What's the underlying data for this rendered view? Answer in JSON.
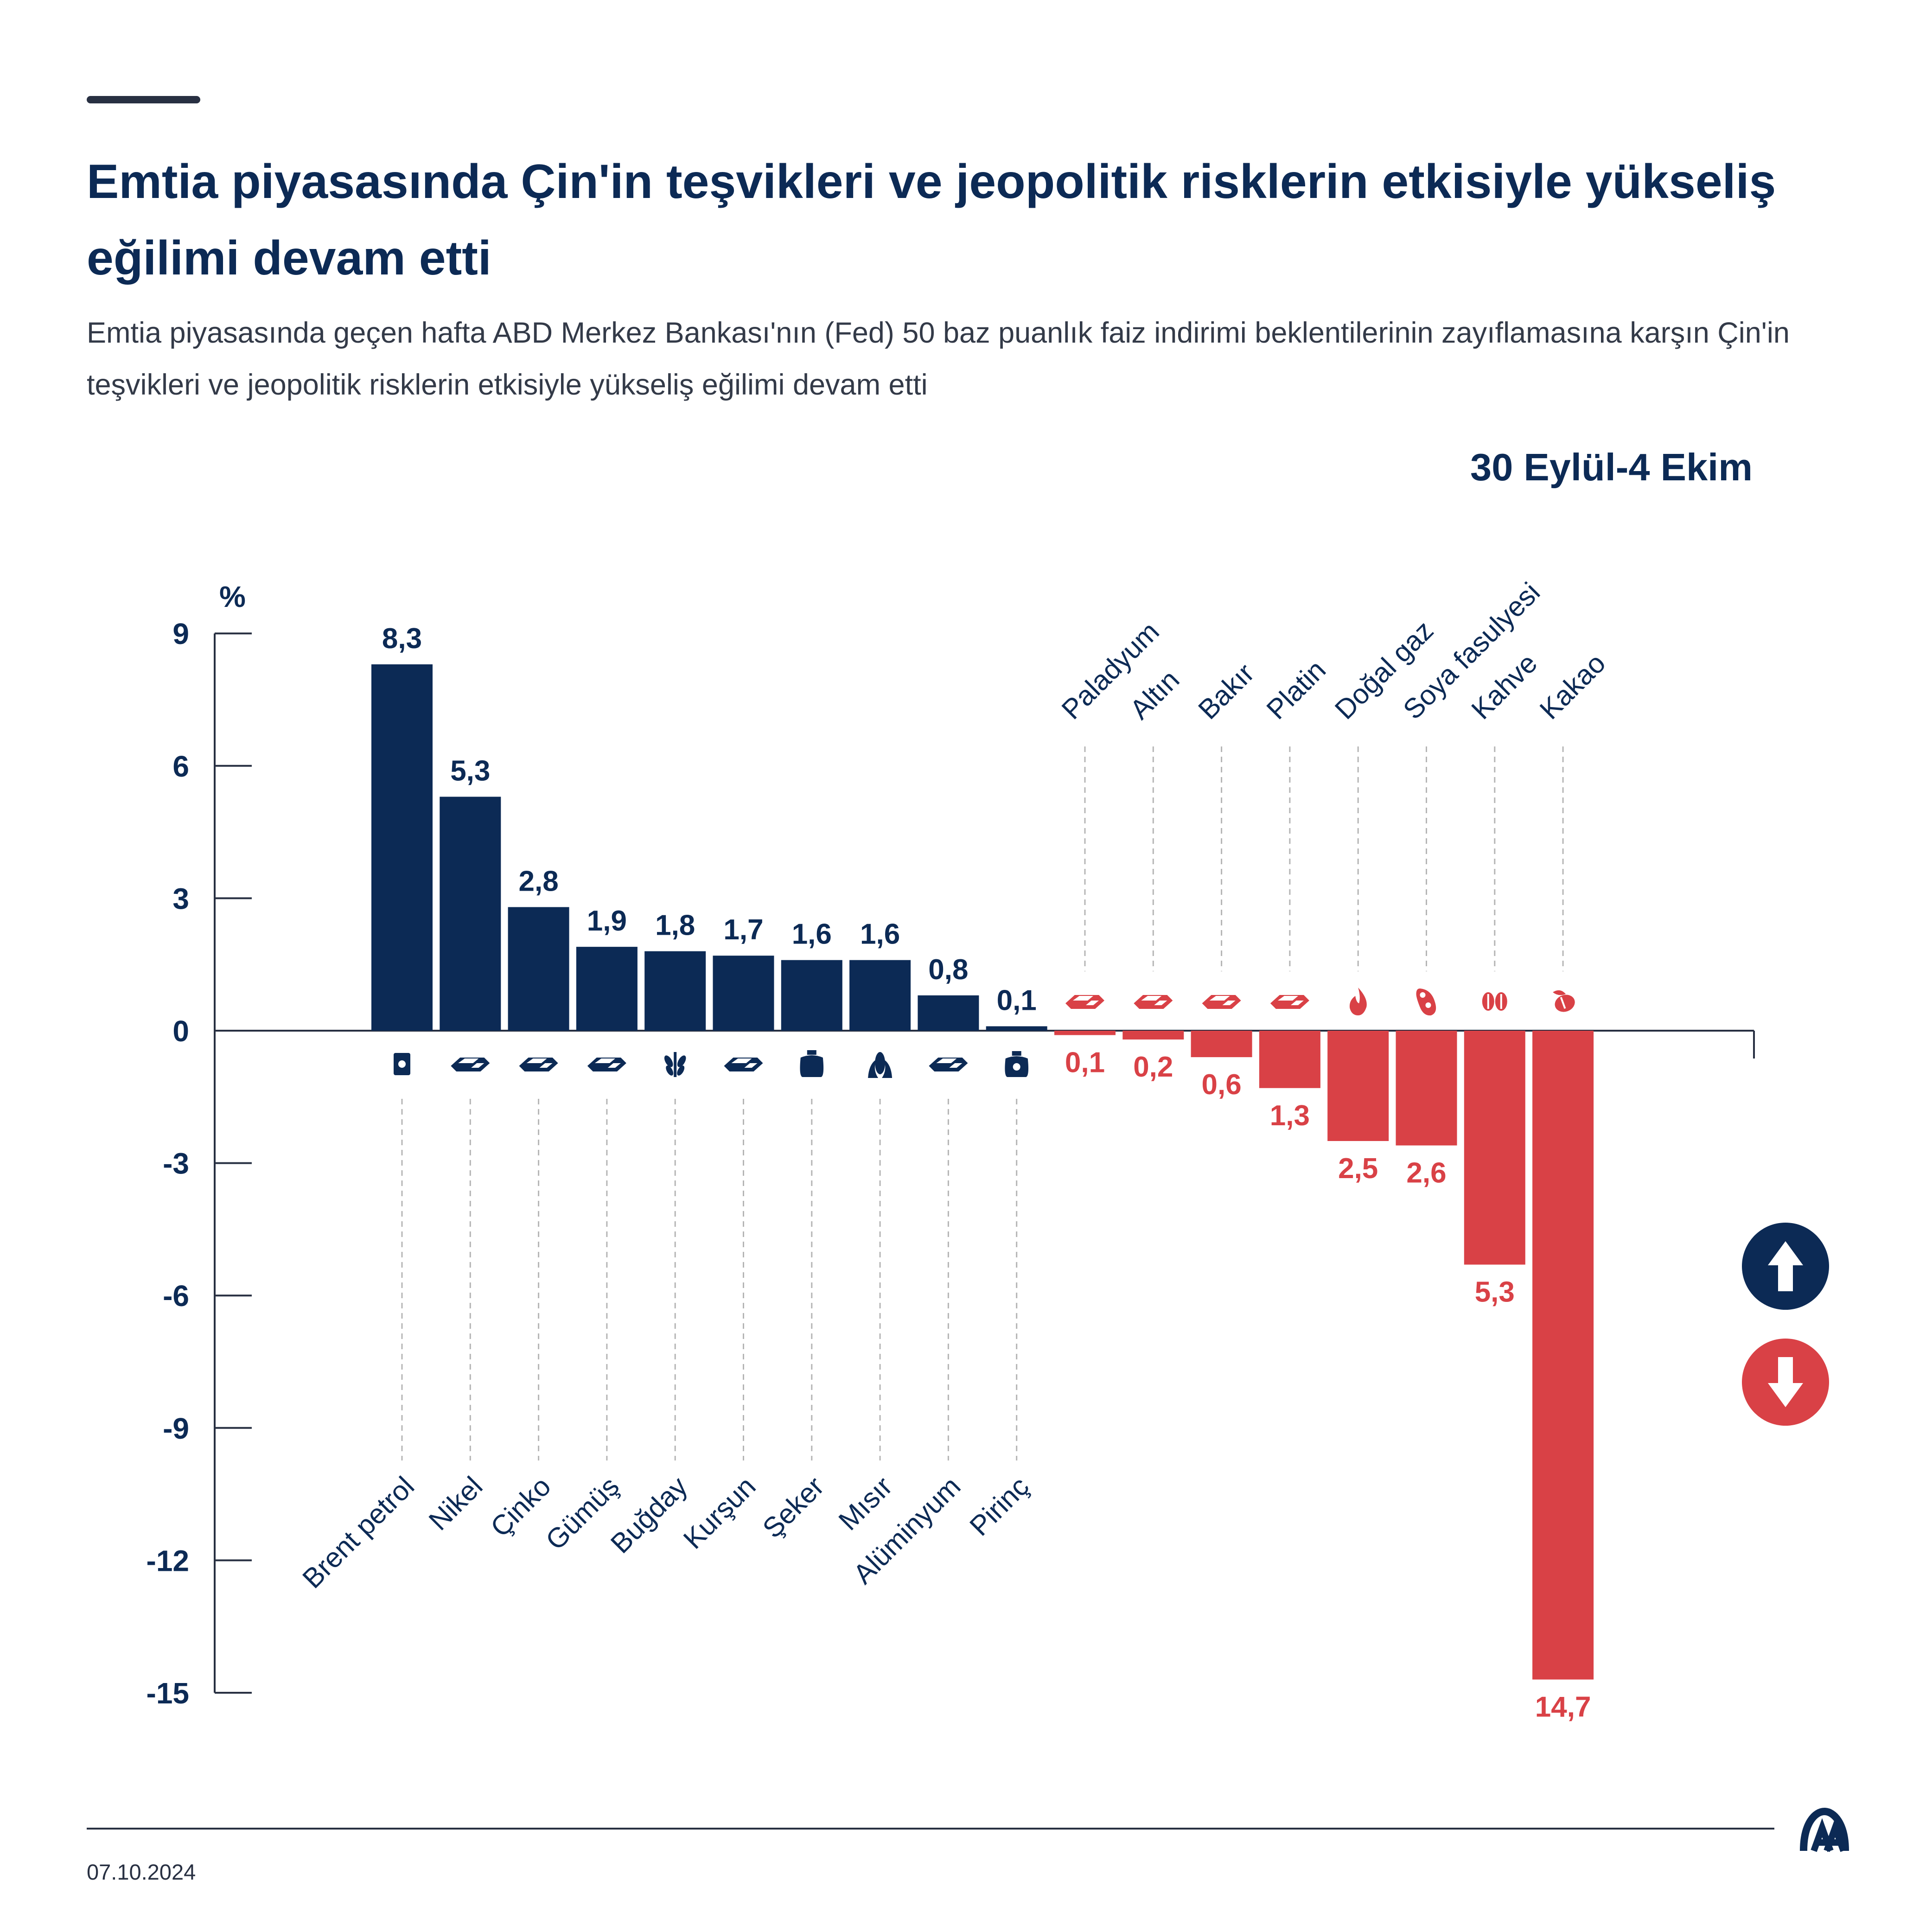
{
  "header": {
    "title": "Emtia piyasasında Çin'in teşvikleri ve jeopolitik risklerin etkisiyle yükseliş eğilimi devam etti",
    "subtitle": "Emtia piyasasında geçen hafta ABD Merkez Bankası'nın (Fed) 50 baz puanlık faiz indirimi beklentilerinin zayıflamasına karşın Çin'in teşvikleri ve jeopolitik risklerin etkisiyle yükseliş eğilimi devam etti",
    "period": "30 Eylül-4 Ekim"
  },
  "colors": {
    "positive": "#0c2a55",
    "negative": "#d94146",
    "axis": "#283042",
    "guide": "#b5b5b5"
  },
  "chart_data": {
    "type": "bar",
    "unit_label": "%",
    "ylim": [
      -15,
      9
    ],
    "yticks": [
      9,
      6,
      3,
      0,
      -3,
      -6,
      -9,
      -12,
      -15
    ],
    "categories": [
      "Brent petrol",
      "Nikel",
      "Çinko",
      "Gümüş",
      "Buğday",
      "Kurşun",
      "Şeker",
      "Mısır",
      "Alüminyum",
      "Pirinç",
      "Paladyum",
      "Altın",
      "Bakır",
      "Platin",
      "Doğal gaz",
      "Soya fasulyesi",
      "Kahve",
      "Kakao"
    ],
    "values": [
      8.3,
      5.3,
      2.8,
      1.9,
      1.8,
      1.7,
      1.6,
      1.6,
      0.8,
      0.1,
      -0.1,
      -0.2,
      -0.6,
      -1.3,
      -2.5,
      -2.6,
      -5.3,
      -14.7
    ],
    "value_labels": [
      "8,3",
      "5,3",
      "2,8",
      "1,9",
      "1,8",
      "1,7",
      "1,6",
      "1,6",
      "0,8",
      "0,1",
      "0,1",
      "0,2",
      "0,6",
      "1,3",
      "2,5",
      "2,6",
      "5,3",
      "14,7"
    ],
    "icons": [
      "oil-barrel-icon",
      "metal-bar-icon",
      "metal-bar-icon",
      "metal-bar-icon",
      "wheat-icon",
      "metal-bar-icon",
      "sugar-sack-icon",
      "corn-icon",
      "metal-bar-icon",
      "rice-sack-icon",
      "metal-bar-icon",
      "metal-bar-icon",
      "metal-bar-icon",
      "metal-bar-icon",
      "flame-icon",
      "soybean-icon",
      "coffee-bean-icon",
      "cocoa-pod-icon"
    ],
    "legend": [
      "up-arrow",
      "down-arrow"
    ]
  },
  "footer": {
    "date": "07.10.2024"
  }
}
